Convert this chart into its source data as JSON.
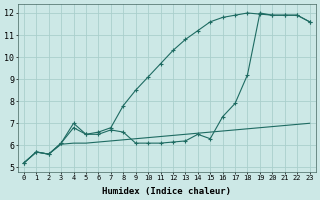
{
  "xlabel": "Humidex (Indice chaleur)",
  "xlim": [
    -0.5,
    23.5
  ],
  "ylim": [
    4.8,
    12.4
  ],
  "xticks": [
    0,
    1,
    2,
    3,
    4,
    5,
    6,
    7,
    8,
    9,
    10,
    11,
    12,
    13,
    14,
    15,
    16,
    17,
    18,
    19,
    20,
    21,
    22,
    23
  ],
  "yticks": [
    5,
    6,
    7,
    8,
    9,
    10,
    11,
    12
  ],
  "background_color": "#cce8e6",
  "grid_color": "#aacfcc",
  "line_color": "#1e6b62",
  "line1_x": [
    0,
    1,
    2,
    3,
    4,
    5,
    6,
    7,
    8,
    9,
    10,
    11,
    12,
    13,
    14,
    15,
    16,
    17,
    18,
    19,
    20,
    21,
    22,
    23
  ],
  "line1_y": [
    5.2,
    5.7,
    5.6,
    6.05,
    6.1,
    6.1,
    6.15,
    6.2,
    6.25,
    6.3,
    6.35,
    6.4,
    6.45,
    6.5,
    6.55,
    6.6,
    6.65,
    6.7,
    6.75,
    6.8,
    6.85,
    6.9,
    6.95,
    7.0
  ],
  "line2_x": [
    0,
    1,
    2,
    3,
    4,
    5,
    6,
    7,
    8,
    9,
    10,
    11,
    12,
    13,
    14,
    15,
    16,
    17,
    18,
    19,
    20,
    21,
    22,
    23
  ],
  "line2_y": [
    5.2,
    5.7,
    5.6,
    6.1,
    6.8,
    6.5,
    6.5,
    6.7,
    6.6,
    6.1,
    6.1,
    6.1,
    6.15,
    6.2,
    6.5,
    6.3,
    7.3,
    7.9,
    9.2,
    12.0,
    11.9,
    11.9,
    11.9,
    11.6
  ],
  "line3_x": [
    0,
    1,
    2,
    3,
    4,
    5,
    6,
    7,
    8,
    9,
    10,
    11,
    12,
    13,
    14,
    15,
    16,
    17,
    18,
    19,
    20,
    21,
    22,
    23
  ],
  "line3_y": [
    5.2,
    5.7,
    5.6,
    6.1,
    7.0,
    6.5,
    6.6,
    6.8,
    7.8,
    8.5,
    9.1,
    9.7,
    10.3,
    10.8,
    11.2,
    11.6,
    11.8,
    11.9,
    12.0,
    11.95,
    11.9,
    11.9,
    11.9,
    11.6
  ]
}
